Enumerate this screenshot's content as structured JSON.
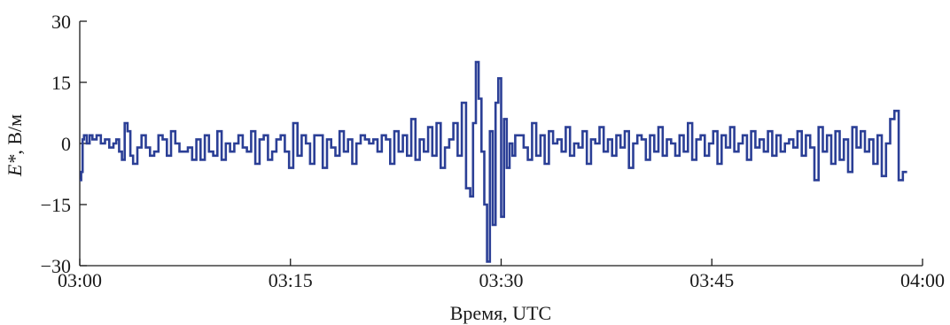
{
  "chart_data": {
    "type": "line",
    "title": "",
    "xlabel": "Время, UTC",
    "ylabel_prefix": "E*",
    "ylabel_unit": ", В/м",
    "x_ticks": [
      "03:00",
      "03:15",
      "03:30",
      "03:45",
      "04:00"
    ],
    "y_ticks": [
      "30",
      "15",
      "0",
      "−15",
      "−30"
    ],
    "xlim_minutes_after_0300": [
      0,
      60
    ],
    "ylim": [
      -30,
      30
    ],
    "grid": false,
    "colors": {
      "line": "#2b3f96",
      "axis": "#1a1a1a"
    },
    "series": [
      {
        "x_minutes_after_0300": [
          0.0,
          0.1,
          0.2,
          0.3,
          0.5,
          0.7,
          0.9,
          1.2,
          1.5,
          1.8,
          2.1,
          2.4,
          2.6,
          2.8,
          3.0,
          3.2,
          3.4,
          3.6,
          3.8,
          4.1,
          4.4,
          4.7,
          5.0,
          5.3,
          5.6,
          5.9,
          6.2,
          6.5,
          6.8,
          7.1,
          7.4,
          7.7,
          8.0,
          8.3,
          8.6,
          8.9,
          9.2,
          9.5,
          9.8,
          10.1,
          10.4,
          10.7,
          11.0,
          11.3,
          11.6,
          11.9,
          12.2,
          12.5,
          12.8,
          13.1,
          13.4,
          13.7,
          14.0,
          14.3,
          14.6,
          14.9,
          15.2,
          15.5,
          15.8,
          16.1,
          16.4,
          16.7,
          17.0,
          17.3,
          17.6,
          17.9,
          18.2,
          18.5,
          18.8,
          19.1,
          19.4,
          19.7,
          20.0,
          20.3,
          20.6,
          20.9,
          21.2,
          21.5,
          21.8,
          22.1,
          22.4,
          22.7,
          23.0,
          23.3,
          23.6,
          23.9,
          24.2,
          24.5,
          24.8,
          25.1,
          25.4,
          25.7,
          26.0,
          26.3,
          26.6,
          26.9,
          27.2,
          27.5,
          27.8,
          28.0,
          28.2,
          28.4,
          28.6,
          28.8,
          29.0,
          29.2,
          29.4,
          29.6,
          29.8,
          30.0,
          30.2,
          30.4,
          30.6,
          30.8,
          31.0,
          31.3,
          31.6,
          31.9,
          32.2,
          32.5,
          32.8,
          33.1,
          33.4,
          33.7,
          34.0,
          34.3,
          34.6,
          34.9,
          35.2,
          35.5,
          35.8,
          36.1,
          36.4,
          36.7,
          37.0,
          37.3,
          37.6,
          37.9,
          38.2,
          38.5,
          38.8,
          39.1,
          39.4,
          39.7,
          40.0,
          40.3,
          40.6,
          40.9,
          41.2,
          41.5,
          41.8,
          42.1,
          42.4,
          42.7,
          43.0,
          43.3,
          43.6,
          43.9,
          44.2,
          44.5,
          44.8,
          45.1,
          45.4,
          45.7,
          46.0,
          46.3,
          46.6,
          46.9,
          47.2,
          47.5,
          47.8,
          48.1,
          48.4,
          48.7,
          49.0,
          49.3,
          49.6,
          49.9,
          50.2,
          50.5,
          50.8,
          51.1,
          51.4,
          51.7,
          52.0,
          52.3,
          52.6,
          52.9,
          53.2,
          53.5,
          53.8,
          54.1,
          54.4,
          54.7,
          55.0,
          55.3,
          55.6,
          55.9,
          56.2,
          56.5,
          56.8,
          57.1,
          57.4,
          57.7,
          58.0,
          58.3,
          58.6,
          58.9,
          59.2,
          59.5,
          59.7,
          59.9,
          60.1,
          60.3
        ],
        "values": [
          -9,
          -7,
          1,
          2,
          0,
          2,
          1,
          2,
          0,
          1,
          -1,
          0,
          1,
          -2,
          -4,
          5,
          3,
          -3,
          -5,
          -1,
          2,
          -1,
          -3,
          -2,
          2,
          1,
          -3,
          3,
          0,
          -2,
          -2,
          -1,
          -4,
          1,
          -4,
          2,
          -2,
          -3,
          3,
          -4,
          0,
          -2,
          0,
          2,
          -1,
          -2,
          3,
          -5,
          1,
          2,
          -4,
          -2,
          1,
          2,
          -2,
          -6,
          5,
          -3,
          2,
          0,
          -5,
          2,
          2,
          -6,
          1,
          -1,
          -3,
          3,
          -2,
          1,
          -5,
          0,
          2,
          1,
          0,
          1,
          -2,
          2,
          1,
          -5,
          3,
          -2,
          2,
          -3,
          6,
          -4,
          1,
          -2,
          4,
          -3,
          5,
          -6,
          -1,
          1,
          5,
          -3,
          10,
          -11,
          -13,
          5,
          20,
          11,
          -2,
          -15,
          -29,
          3,
          -20,
          10,
          16,
          -18,
          6,
          -6,
          0,
          -3,
          2,
          2,
          -1,
          -4,
          5,
          -3,
          2,
          -5,
          3,
          0,
          1,
          -2,
          4,
          -3,
          0,
          -1,
          3,
          -5,
          1,
          0,
          4,
          -2,
          1,
          -3,
          2,
          -1,
          3,
          -6,
          0,
          2,
          1,
          -4,
          2,
          -2,
          4,
          -3,
          1,
          0,
          -3,
          2,
          -2,
          5,
          -4,
          1,
          2,
          -3,
          0,
          3,
          -5,
          2,
          -1,
          4,
          -2,
          0,
          2,
          -4,
          3,
          -1,
          1,
          -2,
          3,
          -3,
          2,
          -2,
          0,
          1,
          -1,
          3,
          -3,
          2,
          -1,
          -9,
          4,
          -2,
          2,
          -5,
          3,
          -4,
          1,
          -7,
          4,
          -1,
          3,
          -2,
          1,
          -5,
          2,
          -8,
          0,
          6,
          8,
          -9,
          -7
        ]
      }
    ]
  }
}
